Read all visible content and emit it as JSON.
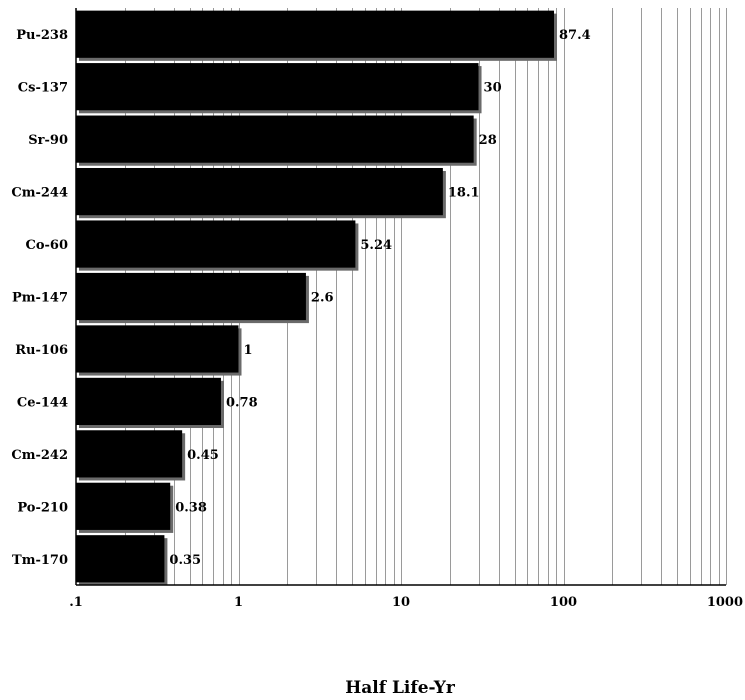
{
  "chart_data": {
    "type": "bar",
    "orientation": "horizontal",
    "x_scale": "log",
    "categories": [
      "Pu-238",
      "Cs-137",
      "Sr-90",
      "Cm-244",
      "Co-60",
      "Pm-147",
      "Ru-106",
      "Ce-144",
      "Cm-242",
      "Po-210",
      "Tm-170"
    ],
    "values": [
      87.4,
      30,
      28,
      18.1,
      5.24,
      2.6,
      1,
      0.78,
      0.45,
      0.38,
      0.35
    ],
    "value_labels": [
      "87.4",
      "30",
      "28",
      "18.1",
      "5.24",
      "2.6",
      "1",
      "0.78",
      "0.45",
      "0.38",
      "0.35"
    ],
    "xlabel": "Half Life-Yr",
    "xlim": [
      0.1,
      1000
    ],
    "xticks": [
      0.1,
      1,
      10,
      100,
      1000
    ],
    "xtick_labels": [
      ".1",
      "1",
      "10",
      "100",
      "1000"
    ],
    "grid": "vertical minor and major",
    "legend": "none",
    "bar_color": "#000000",
    "grid_color": "#9a9a9a"
  }
}
